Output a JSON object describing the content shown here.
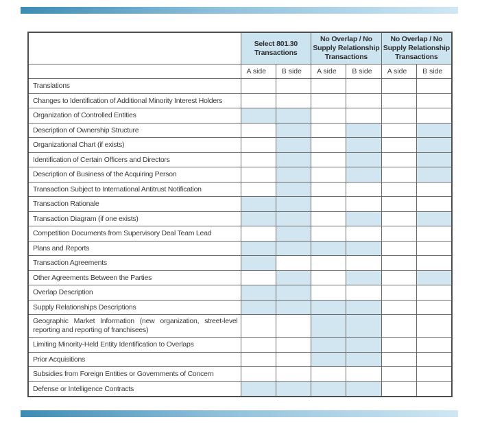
{
  "colors": {
    "accent_left": "#3d8cb4",
    "accent_right": "#cfe7f3",
    "header_fill": "#cce3f0",
    "shaded_cell_fill": "#d2e6f2",
    "grid_line": "#6a6a6a",
    "outer_border": "#4d4d4d",
    "text": "#3b3b3b"
  },
  "table": {
    "column_groups": [
      {
        "label": "Select 801.30 Transactions"
      },
      {
        "label": "No Overlap / No Supply Relationship Transactions"
      },
      {
        "label": "No Overlap / No Supply Relationship Transactions"
      }
    ],
    "subheaders": [
      "A side",
      "B side",
      "A side",
      "B side",
      "A side",
      "B side"
    ],
    "rows": [
      {
        "label": "Translations",
        "shaded": []
      },
      {
        "label": "Changes to Identification of Additional Minority Interest Holders",
        "shaded": []
      },
      {
        "label": "Organization of Controlled Entities",
        "shaded": [
          1,
          2
        ]
      },
      {
        "label": "Description of Ownership Structure",
        "shaded": [
          2,
          4,
          6
        ]
      },
      {
        "label": "Organizational Chart (if exists)",
        "shaded": [
          2,
          4,
          6
        ]
      },
      {
        "label": "Identification of Certain Officers and Directors",
        "shaded": [
          2,
          4,
          6
        ]
      },
      {
        "label": "Description of Business of the Acquiring Person",
        "shaded": [
          2,
          4,
          6
        ]
      },
      {
        "label": "Transaction Subject to International Antitrust Notification",
        "shaded": [
          2
        ]
      },
      {
        "label": "Transaction Rationale",
        "shaded": [
          1,
          2
        ]
      },
      {
        "label": "Transaction Diagram (if one exists)",
        "shaded": [
          1,
          2,
          4,
          6
        ]
      },
      {
        "label": "Competition Documents from Supervisory Deal Team Lead",
        "shaded": [
          2
        ]
      },
      {
        "label": "Plans and Reports",
        "shaded": [
          1,
          2,
          3,
          4
        ]
      },
      {
        "label": "Transaction Agreements",
        "shaded": [
          1
        ]
      },
      {
        "label": "Other Agreements Between the Parties",
        "shaded": [
          2,
          4,
          6
        ]
      },
      {
        "label": "Overlap Description",
        "shaded": [
          1,
          2
        ]
      },
      {
        "label": "Supply Relationships Descriptions",
        "shaded": [
          1,
          2,
          3,
          4
        ]
      },
      {
        "label": "Geographic Market Information (new organization, street-level reporting and reporting of franchisees)",
        "shaded": [
          3,
          4
        ],
        "justify": true
      },
      {
        "label": "Limiting Minority-Held Entity Identification to Overlaps",
        "shaded": [
          3,
          4
        ]
      },
      {
        "label": "Prior Acquisitions",
        "shaded": [
          3,
          4
        ]
      },
      {
        "label": "Subsidies from Foreign Entities or Governments of Concern",
        "shaded": []
      },
      {
        "label": "Defense or Intelligence Contracts",
        "shaded": [
          1,
          2,
          3,
          4
        ]
      }
    ]
  }
}
